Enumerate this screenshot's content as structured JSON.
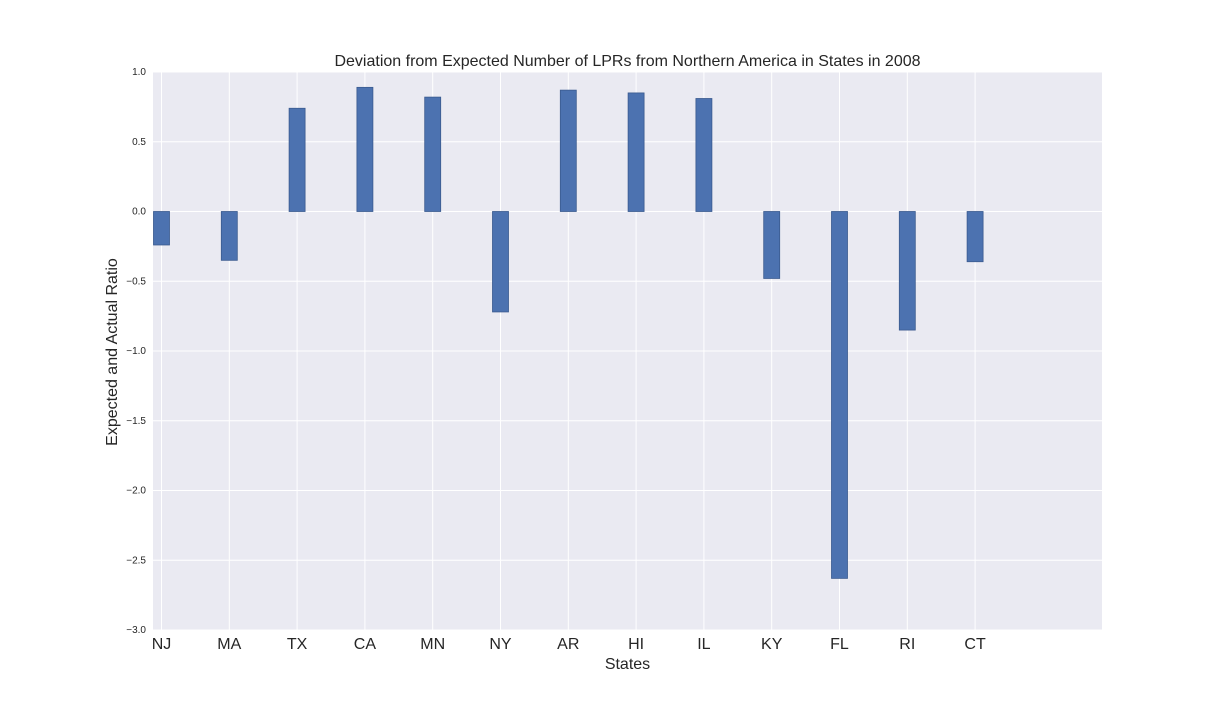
{
  "chart_data": {
    "type": "bar",
    "title": "Deviation from Expected Number of LPRs from Northern America in States in 2008",
    "xlabel": "States",
    "ylabel": "Expected and Actual Ratio",
    "categories": [
      "NJ",
      "MA",
      "TX",
      "CA",
      "MN",
      "NY",
      "AR",
      "HI",
      "IL",
      "KY",
      "FL",
      "RI",
      "CT"
    ],
    "values": [
      -0.24,
      -0.35,
      0.74,
      0.89,
      0.82,
      -0.72,
      0.87,
      0.85,
      0.81,
      -0.48,
      -2.63,
      -0.85,
      -0.36
    ],
    "ylim": [
      -3.0,
      1.0
    ],
    "yticks": [
      "1.0",
      "0.5",
      "0.0",
      "-0.5",
      "-1.0",
      "-1.5",
      "-2.0",
      "-2.5",
      "-3.0"
    ],
    "grid": true,
    "colors": {
      "bar": "#4c72b0",
      "bar_edge": "#3a5a8f",
      "plot_background": "#eaeaf2",
      "grid": "#ffffff",
      "text": "#262626"
    }
  }
}
